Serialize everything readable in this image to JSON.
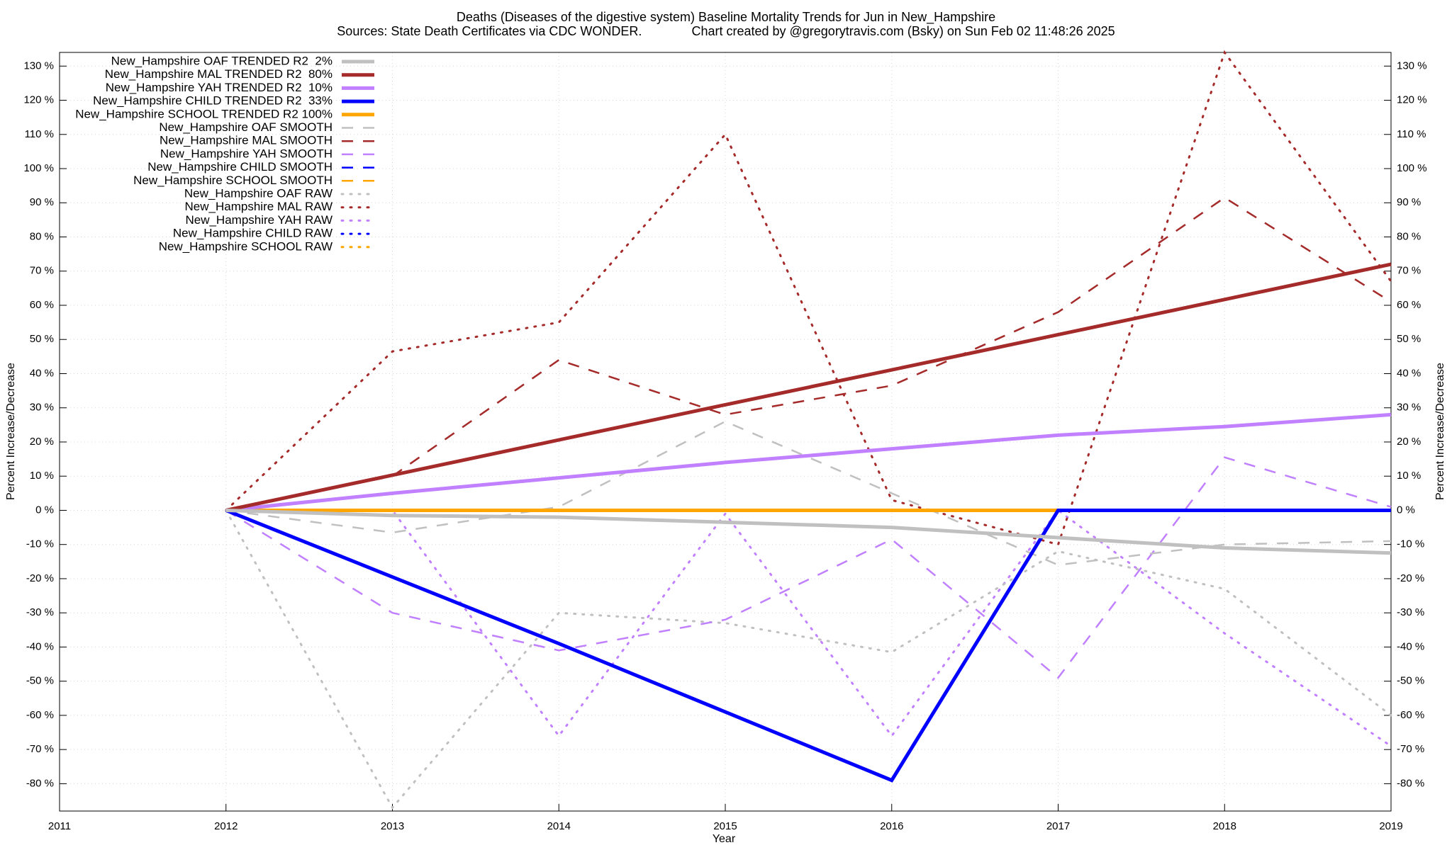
{
  "chart_data": {
    "type": "line",
    "title": "Deaths (Diseases of the digestive system)  Baseline Mortality Trends for Jun in New_Hampshire",
    "subtitle": "Sources: State Death Certificates via CDC WONDER.              Chart created by @gregorytravis.com (Bsky) on Sun Feb 02 11:48:26 2025",
    "x_label": "Year",
    "y_label": "Percent Increase/Decrease",
    "y2_label": "Percent Increase/Decrease",
    "x": [
      2012,
      2013,
      2014,
      2015,
      2016,
      2017,
      2018,
      2019
    ],
    "xlim": [
      2011,
      2019
    ],
    "xticks": [
      2011,
      2012,
      2013,
      2014,
      2015,
      2016,
      2017,
      2018,
      2019
    ],
    "ylim": [
      -88,
      134
    ],
    "yticks": [
      {
        "value": -80,
        "label": "-80 %"
      },
      {
        "value": -70,
        "label": "-70 %"
      },
      {
        "value": -60,
        "label": "-60 %"
      },
      {
        "value": -50,
        "label": "-50 %"
      },
      {
        "value": -40,
        "label": "-40 %"
      },
      {
        "value": -30,
        "label": "-30 %"
      },
      {
        "value": -20,
        "label": "-20 %"
      },
      {
        "value": -10,
        "label": "-10 %"
      },
      {
        "value": 0,
        "label": "0 %"
      },
      {
        "value": 10,
        "label": "10 %"
      },
      {
        "value": 20,
        "label": "20 %"
      },
      {
        "value": 30,
        "label": "30 %"
      },
      {
        "value": 40,
        "label": "40 %"
      },
      {
        "value": 50,
        "label": "50 %"
      },
      {
        "value": 60,
        "label": "60 %"
      },
      {
        "value": 70,
        "label": "70 %"
      },
      {
        "value": 80,
        "label": "80 %"
      },
      {
        "value": 90,
        "label": "90 %"
      },
      {
        "value": 100,
        "label": "100 %"
      },
      {
        "value": 110,
        "label": "110 %"
      },
      {
        "value": 120,
        "label": "120 %"
      },
      {
        "value": 130,
        "label": "130 %"
      }
    ],
    "y2lim": [
      -88,
      134
    ],
    "y2ticks": [
      {
        "value": -80,
        "label": "-80 %"
      },
      {
        "value": -70,
        "label": "-70 %"
      },
      {
        "value": -60,
        "label": "-60 %"
      },
      {
        "value": -50,
        "label": "-50 %"
      },
      {
        "value": -40,
        "label": "-40 %"
      },
      {
        "value": -30,
        "label": "-30 %"
      },
      {
        "value": -20,
        "label": "-20 %"
      },
      {
        "value": -10,
        "label": "-10 %"
      },
      {
        "value": 0,
        "label": "0 %"
      },
      {
        "value": 10,
        "label": "10 %"
      },
      {
        "value": 20,
        "label": "20 %"
      },
      {
        "value": 30,
        "label": "30 %"
      },
      {
        "value": 40,
        "label": "40 %"
      },
      {
        "value": 50,
        "label": "50 %"
      },
      {
        "value": 60,
        "label": "60 %"
      },
      {
        "value": 70,
        "label": "70 %"
      },
      {
        "value": 80,
        "label": "80 %"
      },
      {
        "value": 90,
        "label": "90 %"
      },
      {
        "value": 100,
        "label": "100 %"
      },
      {
        "value": 110,
        "label": "110 %"
      },
      {
        "value": 120,
        "label": "120 %"
      },
      {
        "value": 130,
        "label": "130 %"
      }
    ],
    "grid": true,
    "legend": "top-left",
    "series": [
      {
        "name": "New_Hampshire OAF TRENDED R2  2%",
        "color": "#c0c0c0",
        "dash": "solid",
        "values": [
          0,
          -1.5,
          -2,
          -3.5,
          -5,
          -8,
          -11,
          -12.5
        ]
      },
      {
        "name": "New_Hampshire MAL TRENDED R2  80%",
        "color": "#a52a2a",
        "dash": "solid",
        "values": [
          0,
          10.3,
          20.6,
          30.9,
          41.1,
          51.4,
          61.7,
          72
        ]
      },
      {
        "name": "New_Hampshire YAH TRENDED R2  10%",
        "color": "#c080ff",
        "dash": "solid",
        "values": [
          0,
          5,
          9.5,
          14,
          18,
          22,
          24.5,
          28
        ]
      },
      {
        "name": "New_Hampshire CHILD TRENDED R2  33%",
        "color": "#0000ff",
        "dash": "solid",
        "values": [
          0,
          -19.5,
          -39,
          -59,
          -79,
          0,
          0,
          0
        ]
      },
      {
        "name": "New_Hampshire SCHOOL TRENDED R2 100%",
        "color": "#ffa500",
        "dash": "solid",
        "values": [
          0,
          0,
          0,
          0,
          0,
          0,
          0,
          0
        ]
      },
      {
        "name": "New_Hampshire OAF SMOOTH",
        "color": "#c0c0c0",
        "dash": "dashed",
        "values": [
          0,
          -6.5,
          1,
          26,
          5,
          -16,
          -10,
          -9
        ]
      },
      {
        "name": "New_Hampshire MAL SMOOTH",
        "color": "#a52a2a",
        "dash": "dashed",
        "values": [
          0,
          10,
          44,
          28,
          36.5,
          58,
          91.5,
          61
        ]
      },
      {
        "name": "New_Hampshire YAH SMOOTH",
        "color": "#c080ff",
        "dash": "dashed",
        "values": [
          0,
          -30,
          -41,
          -32,
          -8.5,
          -49,
          15.5,
          1
        ]
      },
      {
        "name": "New_Hampshire CHILD SMOOTH",
        "color": "#0000ff",
        "dash": "dashed",
        "values": [
          0,
          -19.5,
          -39,
          -59,
          -79,
          0,
          0,
          0
        ]
      },
      {
        "name": "New_Hampshire SCHOOL SMOOTH",
        "color": "#ffa500",
        "dash": "dashed",
        "values": [
          0,
          0,
          0,
          0,
          0,
          0,
          0,
          0
        ]
      },
      {
        "name": "New_Hampshire OAF RAW",
        "color": "#c0c0c0",
        "dash": "dotted",
        "values": [
          0,
          -87,
          -30,
          -33,
          -41.5,
          -12,
          -23,
          -60
        ]
      },
      {
        "name": "New_Hampshire MAL RAW",
        "color": "#a52a2a",
        "dash": "dotted",
        "values": [
          0,
          46.5,
          55,
          110,
          3,
          -10,
          134,
          67
        ]
      },
      {
        "name": "New_Hampshire YAH RAW",
        "color": "#c080ff",
        "dash": "dotted",
        "values": [
          0,
          0,
          -66,
          -1,
          -66,
          0,
          -36,
          -69
        ]
      },
      {
        "name": "New_Hampshire CHILD RAW",
        "color": "#0000ff",
        "dash": "dotted",
        "values": [
          0,
          -19.5,
          -39,
          -59,
          -79,
          0,
          0,
          0
        ]
      },
      {
        "name": "New_Hampshire SCHOOL RAW",
        "color": "#ffa500",
        "dash": "dotted",
        "values": [
          0,
          0,
          0,
          0,
          0,
          0,
          0,
          0
        ]
      }
    ]
  }
}
